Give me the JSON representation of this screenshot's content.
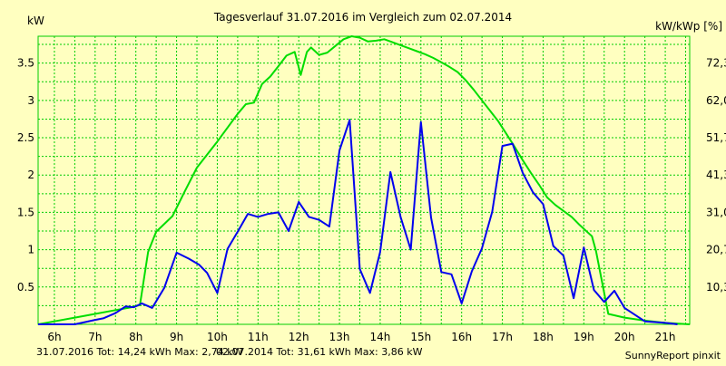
{
  "chart_data": {
    "type": "line",
    "title": "Tagesverlauf 31.07.2016 im Vergleich zum 02.07.2014",
    "ylabel_left": "kW",
    "ylabel_right": "kW/kWp [%]",
    "xlim": [
      5.6,
      21.6
    ],
    "ylim": [
      0,
      3.86
    ],
    "grid": true,
    "x_ticks": [
      {
        "value": 6,
        "label": "6h"
      },
      {
        "value": 7,
        "label": "7h"
      },
      {
        "value": 8,
        "label": "8h"
      },
      {
        "value": 9,
        "label": "9h"
      },
      {
        "value": 10,
        "label": "10h"
      },
      {
        "value": 11,
        "label": "11h"
      },
      {
        "value": 12,
        "label": "12h"
      },
      {
        "value": 13,
        "label": "13h"
      },
      {
        "value": 14,
        "label": "14h"
      },
      {
        "value": 15,
        "label": "15h"
      },
      {
        "value": 16,
        "label": "16h"
      },
      {
        "value": 17,
        "label": "17h"
      },
      {
        "value": 18,
        "label": "18h"
      },
      {
        "value": 19,
        "label": "19h"
      },
      {
        "value": 20,
        "label": "20h"
      },
      {
        "value": 21,
        "label": "21h"
      }
    ],
    "y_ticks_left": [
      {
        "value": 0.5,
        "label": "0.5"
      },
      {
        "value": 1,
        "label": "1"
      },
      {
        "value": 1.5,
        "label": "1.5"
      },
      {
        "value": 2,
        "label": "2"
      },
      {
        "value": 2.5,
        "label": "2.5"
      },
      {
        "value": 3,
        "label": "3"
      },
      {
        "value": 3.5,
        "label": "3.5"
      }
    ],
    "y_ticks_right": [
      {
        "value": 0.5,
        "label": "10,3"
      },
      {
        "value": 1,
        "label": "20,7"
      },
      {
        "value": 1.5,
        "label": "31,0"
      },
      {
        "value": 2,
        "label": "41,3"
      },
      {
        "value": 2.5,
        "label": "51,7"
      },
      {
        "value": 3,
        "label": "62,0"
      },
      {
        "value": 3.5,
        "label": "72,3"
      }
    ],
    "series": [
      {
        "color": "#00dd00",
        "x": [
          5.6,
          6.0,
          6.5,
          7.0,
          7.5,
          7.9,
          8.1,
          8.3,
          8.5,
          8.9,
          9.2,
          9.5,
          10.0,
          10.5,
          10.7,
          10.9,
          11.1,
          11.3,
          11.5,
          11.7,
          11.9,
          12.05,
          12.2,
          12.3,
          12.5,
          12.7,
          12.9,
          13.1,
          13.3,
          13.5,
          13.7,
          13.9,
          14.1,
          14.3,
          14.5,
          14.7,
          14.9,
          15.1,
          15.3,
          15.5,
          15.7,
          15.9,
          16.1,
          16.3,
          16.5,
          16.7,
          16.9,
          17.1,
          17.3,
          17.5,
          17.7,
          17.9,
          18.1,
          18.3,
          18.5,
          18.7,
          18.9,
          19.1,
          19.2,
          19.3,
          19.6,
          20.0,
          20.5,
          21.0,
          21.6
        ],
        "y": [
          0.0,
          0.04,
          0.09,
          0.14,
          0.19,
          0.23,
          0.26,
          0.97,
          1.24,
          1.45,
          1.78,
          2.1,
          2.45,
          2.82,
          2.95,
          2.97,
          3.22,
          3.32,
          3.46,
          3.6,
          3.65,
          3.34,
          3.65,
          3.71,
          3.61,
          3.64,
          3.73,
          3.82,
          3.86,
          3.84,
          3.79,
          3.8,
          3.82,
          3.78,
          3.74,
          3.7,
          3.66,
          3.62,
          3.57,
          3.51,
          3.45,
          3.38,
          3.27,
          3.14,
          3.0,
          2.86,
          2.72,
          2.55,
          2.38,
          2.2,
          2.03,
          1.87,
          1.7,
          1.6,
          1.52,
          1.44,
          1.33,
          1.23,
          1.18,
          0.98,
          0.14,
          0.09,
          0.05,
          0.02,
          0.0
        ]
      },
      {
        "color": "#0000ee",
        "x": [
          5.6,
          6.0,
          6.5,
          7.0,
          7.2,
          7.5,
          7.75,
          7.95,
          8.15,
          8.4,
          8.7,
          9.0,
          9.3,
          9.55,
          9.75,
          10.0,
          10.25,
          10.5,
          10.75,
          11.0,
          11.25,
          11.5,
          11.75,
          12.0,
          12.25,
          12.5,
          12.75,
          13.0,
          13.25,
          13.5,
          13.75,
          14.0,
          14.25,
          14.5,
          14.75,
          15.0,
          15.25,
          15.5,
          15.75,
          16.0,
          16.25,
          16.5,
          16.75,
          17.0,
          17.25,
          17.5,
          17.75,
          18.0,
          18.25,
          18.5,
          18.75,
          19.0,
          19.25,
          19.5,
          19.75,
          20.0,
          20.5,
          21.0,
          21.3
        ],
        "y": [
          0.0,
          0.0,
          0.0,
          0.06,
          0.08,
          0.15,
          0.24,
          0.23,
          0.28,
          0.22,
          0.49,
          0.96,
          0.88,
          0.8,
          0.69,
          0.42,
          1.01,
          1.24,
          1.48,
          1.44,
          1.48,
          1.5,
          1.25,
          1.64,
          1.44,
          1.4,
          1.31,
          2.33,
          2.74,
          0.74,
          0.42,
          0.97,
          2.04,
          1.44,
          1.0,
          2.71,
          1.43,
          0.7,
          0.67,
          0.28,
          0.71,
          1.02,
          1.51,
          2.39,
          2.42,
          2.03,
          1.77,
          1.61,
          1.05,
          0.92,
          0.35,
          1.03,
          0.46,
          0.3,
          0.45,
          0.22,
          0.04,
          0.02,
          0.0
        ]
      }
    ]
  },
  "footer": {
    "series1_summary": "31.07.2016 Tot: 14,24 kWh Max: 2,74 kW",
    "series2_summary": "02.07.2014 Tot: 31,61 kWh Max: 3,86 kW",
    "credit": "SunnyReport pinxit"
  },
  "colors": {
    "background": "#ffffc0",
    "grid": "#00cc00",
    "series1_text": "#0000ee",
    "series2_text": "#008800"
  }
}
